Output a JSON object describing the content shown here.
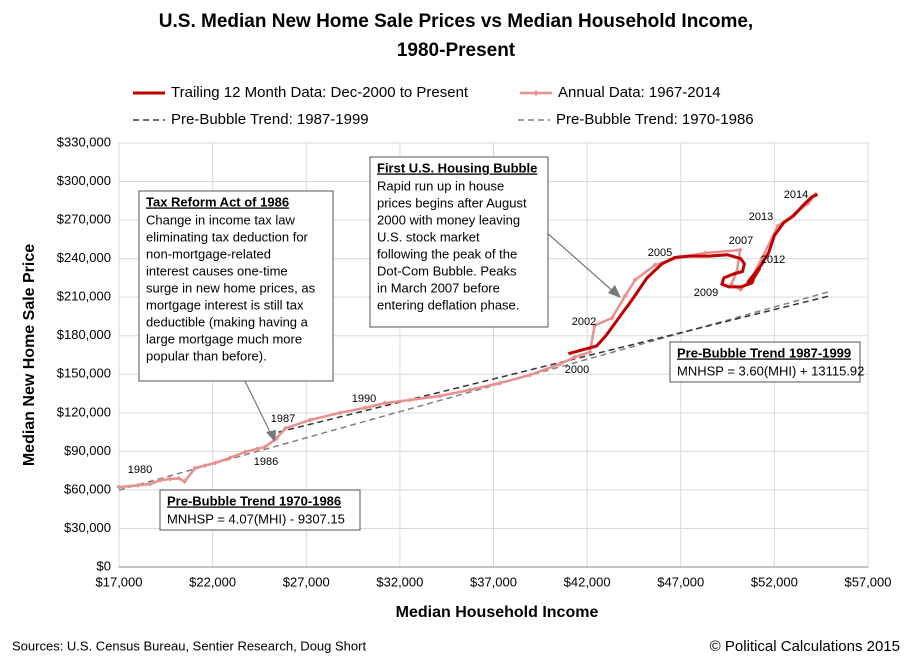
{
  "chart_data": {
    "type": "line",
    "title": "U.S. Median New Home Sale Prices vs Median Household Income,",
    "subtitle": "1980-Present",
    "x_label": "Median Household Income",
    "y_label": "Median New Home Sale Price",
    "xlim": [
      17000,
      57000
    ],
    "ylim": [
      0,
      330000
    ],
    "xticks": [
      {
        "value": 17000,
        "label": "$17,000"
      },
      {
        "value": 22000,
        "label": "$22,000"
      },
      {
        "value": 27000,
        "label": "$27,000"
      },
      {
        "value": 32000,
        "label": "$32,000"
      },
      {
        "value": 37000,
        "label": "$37,000"
      },
      {
        "value": 42000,
        "label": "$42,000"
      },
      {
        "value": 47000,
        "label": "$47,000"
      },
      {
        "value": 52000,
        "label": "$52,000"
      },
      {
        "value": 57000,
        "label": "$57,000"
      }
    ],
    "yticks": [
      {
        "value": 0,
        "label": "$0"
      },
      {
        "value": 30000,
        "label": "$30,000"
      },
      {
        "value": 60000,
        "label": "$60,000"
      },
      {
        "value": 90000,
        "label": "$90,000"
      },
      {
        "value": 120000,
        "label": "$120,000"
      },
      {
        "value": 150000,
        "label": "$150,000"
      },
      {
        "value": 180000,
        "label": "$180,000"
      },
      {
        "value": 210000,
        "label": "$210,000"
      },
      {
        "value": 240000,
        "label": "$240,000"
      },
      {
        "value": 270000,
        "label": "$270,000"
      },
      {
        "value": 300000,
        "label": "$300,000"
      },
      {
        "value": 330000,
        "label": "$330,000"
      }
    ],
    "grid": true,
    "series": [
      {
        "name": "Trailing 12 Month Data: Dec-2000 to Present",
        "color": "#c00000",
        "style": "solid",
        "markers": false,
        "x": [
          41000,
          42000,
          42500,
          43000,
          43800,
          44500,
          45200,
          46000,
          46700,
          47500,
          48500,
          49500,
          50200,
          50400,
          50300,
          49800,
          49300,
          49200,
          49600,
          50200,
          50800,
          51000,
          51200,
          50900,
          50600,
          51300,
          51700,
          52000,
          52500,
          53000,
          53500,
          54000,
          54300
        ],
        "values": [
          166000,
          170000,
          172000,
          180000,
          196000,
          210000,
          225000,
          236000,
          241000,
          242000,
          242000,
          243000,
          240000,
          236000,
          230000,
          228000,
          225000,
          220000,
          218000,
          218000,
          221000,
          228000,
          232000,
          225000,
          222000,
          235000,
          245000,
          258000,
          268000,
          273000,
          281000,
          288000,
          290000
        ]
      },
      {
        "name": "Annual Data: 1967-2014",
        "color": "#e8908e",
        "style": "solid",
        "markers": true,
        "x": [
          17000,
          18000,
          18650,
          19200,
          19720,
          20200,
          20500,
          21060,
          21600,
          22130,
          22930,
          23730,
          24400,
          24800,
          25400,
          25900,
          27200,
          28800,
          30140,
          31200,
          32540,
          34140,
          35750,
          37350,
          38950,
          40550,
          41350,
          42150,
          42400,
          43330,
          44030,
          44560,
          45630,
          46970,
          48300,
          50170,
          50000,
          49700,
          50200,
          50800,
          51340,
          52190,
          53100,
          53800,
          54200
        ],
        "values": [
          62300,
          63500,
          64600,
          67500,
          68500,
          69000,
          66500,
          77000,
          79000,
          81000,
          85000,
          89500,
          92000,
          93500,
          100000,
          108000,
          114400,
          120000,
          123800,
          127600,
          130000,
          133100,
          137800,
          143200,
          149400,
          158000,
          163400,
          167300,
          188000,
          193800,
          210900,
          223400,
          235100,
          241300,
          244400,
          246700,
          230000,
          220000,
          216000,
          225000,
          240500,
          265400,
          275000,
          283000,
          290000
        ]
      },
      {
        "name": "Pre-Bubble Trend: 1987-1999",
        "color": "#333333",
        "style": "dashed",
        "markers": false,
        "x": [
          25000,
          55000
        ],
        "values": [
          103116,
          211116
        ]
      },
      {
        "name": "Pre-Bubble Trend: 1970-1986",
        "color": "#808080",
        "style": "dashed",
        "markers": false,
        "x": [
          17000,
          55000
        ],
        "values": [
          59883,
          214543
        ]
      }
    ],
    "year_labels": [
      "1980",
      "1986",
      "1987",
      "1990",
      "2000",
      "2002",
      "2005",
      "2007",
      "2009",
      "2012",
      "2013",
      "2014"
    ],
    "boxes": [
      {
        "title": "Tax Reform Act of 1986",
        "lines": [
          "Change in income tax law",
          "eliminating tax deduction for",
          "non-mortgage-related",
          "interest causes one-time",
          "surge in new home prices, as",
          "mortgage interest is still tax",
          "deductible (making having a",
          "large mortgage much more",
          "popular than before)."
        ]
      },
      {
        "title": "First U.S. Housing Bubble",
        "lines": [
          "Rapid run up in house",
          "prices begins after August",
          "2000 with money leaving",
          "U.S. stock market",
          "following the peak of the",
          "Dot-Com Bubble.  Peaks",
          "in March 2007  before",
          "entering deflation phase."
        ]
      },
      {
        "title": "Pre-Bubble Trend 1987-1999",
        "lines": [
          "MNHSP = 3.60(MHI) + 13115.92"
        ]
      },
      {
        "title": "Pre-Bubble Trend 1970-1986",
        "lines": [
          "MNHSP = 4.07(MHI) - 9307.15"
        ]
      }
    ],
    "sources": "Sources: U.S. Census Bureau, Sentier Research, Doug Short",
    "copyright": "© Political Calculations 2015"
  }
}
